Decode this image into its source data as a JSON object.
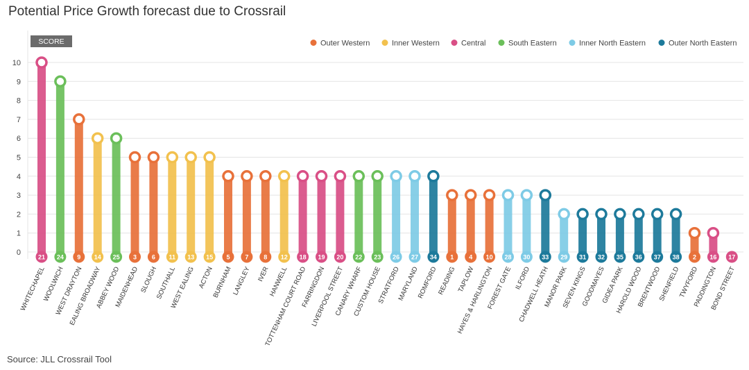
{
  "title": "Potential Price Growth forecast due to Crossrail",
  "source": "Source: JLL Crossrail Tool",
  "chart_data": {
    "type": "lollipop",
    "y_axis_badge": "SCORE",
    "ylim": [
      0,
      10
    ],
    "yticks": [
      0,
      1,
      2,
      3,
      4,
      5,
      6,
      7,
      8,
      9,
      10
    ],
    "grid": true,
    "legend_position": "top-right",
    "legend": [
      {
        "name": "Outer Western",
        "color": "#e8713a"
      },
      {
        "name": "Inner Western",
        "color": "#f2c14e"
      },
      {
        "name": "Central",
        "color": "#d94f86"
      },
      {
        "name": "South Eastern",
        "color": "#6bbf5a"
      },
      {
        "name": "Inner North Eastern",
        "color": "#7ecbe6"
      },
      {
        "name": "Outer North Eastern",
        "color": "#1d7a9b"
      }
    ],
    "points": [
      {
        "station": "WHITECHAPEL",
        "score": 10,
        "rank": "21",
        "group": "Central",
        "highlight": true
      },
      {
        "station": "WOOLWICH",
        "score": 9,
        "rank": "24",
        "group": "South Eastern"
      },
      {
        "station": "WEST DRAYTON",
        "score": 7,
        "rank": "9",
        "group": "Outer Western"
      },
      {
        "station": "EALING BROADWAY",
        "score": 6,
        "rank": "14",
        "group": "Inner Western"
      },
      {
        "station": "ABBEY WOOD",
        "score": 6,
        "rank": "25",
        "group": "South Eastern"
      },
      {
        "station": "MAIDENHEAD",
        "score": 5,
        "rank": "3",
        "group": "Outer Western"
      },
      {
        "station": "SLOUGH",
        "score": 5,
        "rank": "6",
        "group": "Outer Western"
      },
      {
        "station": "SOUTHALL",
        "score": 5,
        "rank": "11",
        "group": "Inner Western"
      },
      {
        "station": "WEST EALING",
        "score": 5,
        "rank": "13",
        "group": "Inner Western"
      },
      {
        "station": "ACTON",
        "score": 5,
        "rank": "15",
        "group": "Inner Western"
      },
      {
        "station": "BURNHAM",
        "score": 4,
        "rank": "5",
        "group": "Outer Western"
      },
      {
        "station": "LANGLEY",
        "score": 4,
        "rank": "7",
        "group": "Outer Western"
      },
      {
        "station": "IVER",
        "score": 4,
        "rank": "8",
        "group": "Outer Western"
      },
      {
        "station": "HANWELL",
        "score": 4,
        "rank": "12",
        "group": "Inner Western"
      },
      {
        "station": "TOTTENHAM COURT ROAD",
        "score": 4,
        "rank": "18",
        "group": "Central"
      },
      {
        "station": "FARRINGDON",
        "score": 4,
        "rank": "19",
        "group": "Central"
      },
      {
        "station": "LIVERPOOL STREET",
        "score": 4,
        "rank": "20",
        "group": "Central"
      },
      {
        "station": "CANARY WHARF",
        "score": 4,
        "rank": "22",
        "group": "South Eastern"
      },
      {
        "station": "CUSTOM HOUSE",
        "score": 4,
        "rank": "23",
        "group": "South Eastern"
      },
      {
        "station": "STRATFORD",
        "score": 4,
        "rank": "26",
        "group": "Inner North Eastern"
      },
      {
        "station": "MARYLAND",
        "score": 4,
        "rank": "27",
        "group": "Inner North Eastern"
      },
      {
        "station": "ROMFORD",
        "score": 4,
        "rank": "34",
        "group": "Outer North Eastern"
      },
      {
        "station": "READING",
        "score": 3,
        "rank": "1",
        "group": "Outer Western"
      },
      {
        "station": "TAPLOW",
        "score": 3,
        "rank": "4",
        "group": "Outer Western"
      },
      {
        "station": "HAYES & HARLINGTON",
        "score": 3,
        "rank": "10",
        "group": "Outer Western"
      },
      {
        "station": "FOREST GATE",
        "score": 3,
        "rank": "28",
        "group": "Inner North Eastern"
      },
      {
        "station": "ILFORD",
        "score": 3,
        "rank": "30",
        "group": "Inner North Eastern"
      },
      {
        "station": "CHADWELL HEATH",
        "score": 3,
        "rank": "33",
        "group": "Outer North Eastern"
      },
      {
        "station": "MANOR PARK",
        "score": 2,
        "rank": "29",
        "group": "Inner North Eastern"
      },
      {
        "station": "SEVEN KINGS",
        "score": 2,
        "rank": "31",
        "group": "Outer North Eastern"
      },
      {
        "station": "GOODMAYES",
        "score": 2,
        "rank": "32",
        "group": "Outer North Eastern"
      },
      {
        "station": "GIDEA PARK",
        "score": 2,
        "rank": "35",
        "group": "Outer North Eastern"
      },
      {
        "station": "HAROLD WOOD",
        "score": 2,
        "rank": "36",
        "group": "Outer North Eastern"
      },
      {
        "station": "BRENTWOOD",
        "score": 2,
        "rank": "37",
        "group": "Outer North Eastern"
      },
      {
        "station": "SHENFIELD",
        "score": 2,
        "rank": "38",
        "group": "Outer North Eastern"
      },
      {
        "station": "TWYFORD",
        "score": 1,
        "rank": "2",
        "group": "Outer Western"
      },
      {
        "station": "PADDINGTON",
        "score": 1,
        "rank": "16",
        "group": "Central"
      },
      {
        "station": "BOND STREET",
        "score": 0,
        "rank": "17",
        "group": "Central"
      }
    ]
  }
}
